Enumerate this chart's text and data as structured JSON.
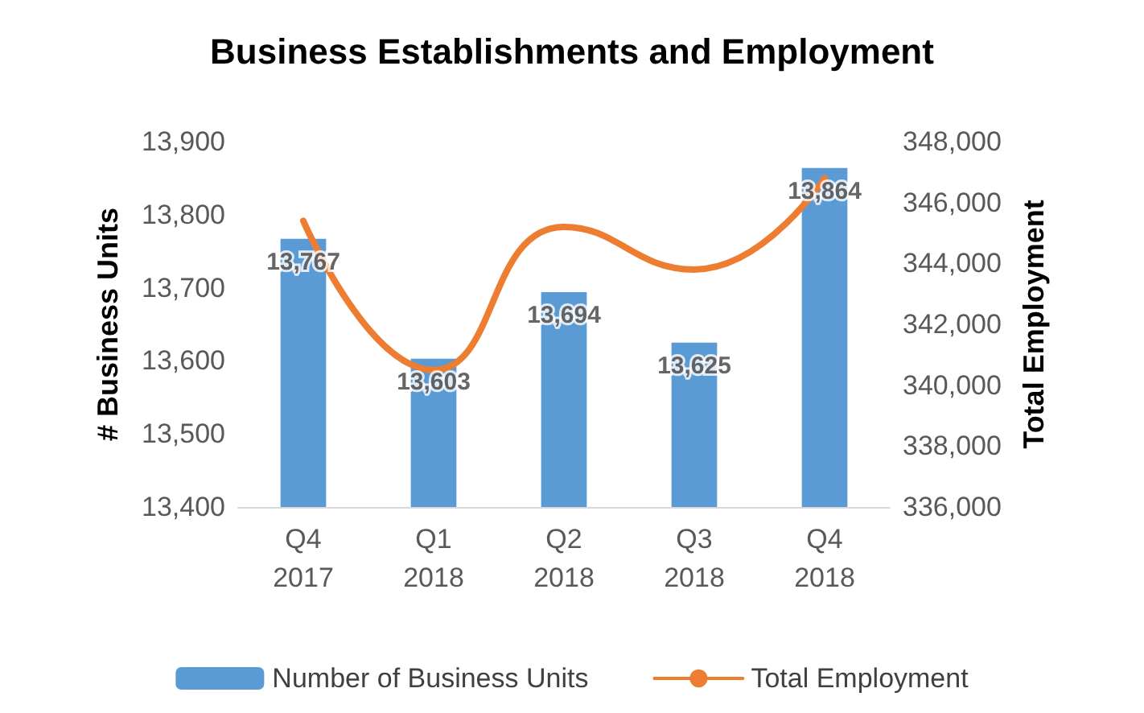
{
  "chart_data": {
    "type": "bar",
    "title": "Business Establishments and Employment",
    "ylabel": "# Business Units",
    "y2label": "Total Employment",
    "categories": [
      "Q4\n2017",
      "Q1\n2018",
      "Q2\n2018",
      "Q3\n2018",
      "Q4\n2018"
    ],
    "series": [
      {
        "name": "Number of Business Units",
        "color": "#5b9bd5",
        "values": [
          13767,
          13603,
          13694,
          13625,
          13864
        ],
        "value_labels": [
          "13,767",
          "13,603",
          "13,694",
          "13,625",
          "13,864"
        ]
      },
      {
        "name": "Total Employment",
        "type": "line",
        "axis": "y2",
        "color": "#ed7d31",
        "values": [
          345400,
          340500,
          345200,
          343800,
          346800
        ]
      }
    ],
    "ylim": [
      13400,
      13900
    ],
    "yticks": [
      {
        "value": 13400,
        "label": "13,400"
      },
      {
        "value": 13500,
        "label": "13,500"
      },
      {
        "value": 13600,
        "label": "13,600"
      },
      {
        "value": 13700,
        "label": "13,700"
      },
      {
        "value": 13800,
        "label": "13,800"
      },
      {
        "value": 13900,
        "label": "13,900"
      }
    ],
    "y2lim": [
      336000,
      348000
    ],
    "y2ticks": [
      {
        "value": 336000,
        "label": "336,000"
      },
      {
        "value": 338000,
        "label": "338,000"
      },
      {
        "value": 340000,
        "label": "340,000"
      },
      {
        "value": 342000,
        "label": "342,000"
      },
      {
        "value": 344000,
        "label": "344,000"
      },
      {
        "value": 346000,
        "label": "346,000"
      },
      {
        "value": 348000,
        "label": "348,000"
      }
    ],
    "grid": false,
    "legend": "bottom",
    "marker": "none"
  }
}
